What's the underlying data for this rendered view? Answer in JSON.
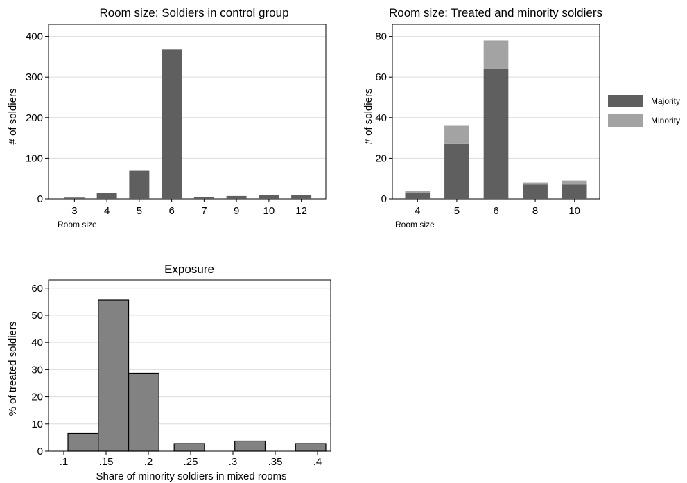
{
  "colors": {
    "majority": "#5f5f5f",
    "minority": "#a3a3a3",
    "histogram_fill": "#828282",
    "histogram_stroke": "#000000",
    "gridline": "#dcdcdc"
  },
  "chart_data": [
    {
      "id": "control",
      "type": "bar",
      "title": "Room size: Soldiers in control group",
      "xlabel": "Room size",
      "ylabel": "# of soldiers",
      "categories": [
        "3",
        "4",
        "5",
        "6",
        "7",
        "9",
        "10",
        "12"
      ],
      "values": [
        3,
        14,
        69,
        368,
        5,
        7,
        9,
        10
      ],
      "ylim": [
        0,
        430
      ],
      "yticks": [
        0,
        100,
        200,
        300,
        400
      ],
      "grid": true,
      "legend": "none"
    },
    {
      "id": "treated",
      "type": "bar",
      "stacked": true,
      "title": "Room size: Treated and minority soldiers",
      "xlabel": "Room size",
      "ylabel": "# of soldiers",
      "categories": [
        "4",
        "5",
        "6",
        "8",
        "10"
      ],
      "series": [
        {
          "name": "Majority",
          "values": [
            3,
            27,
            64,
            7,
            7
          ]
        },
        {
          "name": "Minority",
          "values": [
            1,
            9,
            14,
            1,
            2
          ]
        }
      ],
      "ylim": [
        0,
        86
      ],
      "yticks": [
        0,
        20,
        40,
        60,
        80
      ],
      "grid": true,
      "legend": "right"
    },
    {
      "id": "exposure",
      "type": "bar",
      "histogram": true,
      "title": "Exposure",
      "xlabel": "Share of minority soldiers in mixed rooms",
      "ylabel": "% of treated soldiers",
      "bins": [
        {
          "from": 0.112,
          "to": 0.162,
          "value": 6.5
        },
        {
          "from": 0.162,
          "to": 0.212,
          "value": 55.6
        },
        {
          "from": 0.212,
          "to": 0.262,
          "value": 28.7
        },
        {
          "from": 0.287,
          "to": 0.337,
          "value": 2.8
        },
        {
          "from": 0.387,
          "to": 0.437,
          "value": 3.7
        },
        {
          "from": 0.487,
          "to": 0.537,
          "value": 2.8
        }
      ],
      "xticks": [
        {
          "label": ".1",
          "value": 0.1
        },
        {
          "label": ".15",
          "value": 0.15
        },
        {
          "label": ".2",
          "value": 0.2
        },
        {
          "label": ".25",
          "value": 0.25
        },
        {
          "label": ".3",
          "value": 0.3
        },
        {
          "label": ".35",
          "value": 0.35
        },
        {
          "label": ".4",
          "value": 0.4
        }
      ],
      "xlim": [
        0.08,
        0.545
      ],
      "ylim": [
        0,
        63
      ],
      "yticks": [
        0,
        10,
        20,
        30,
        40,
        50,
        60
      ],
      "grid": true,
      "legend": "none"
    }
  ]
}
